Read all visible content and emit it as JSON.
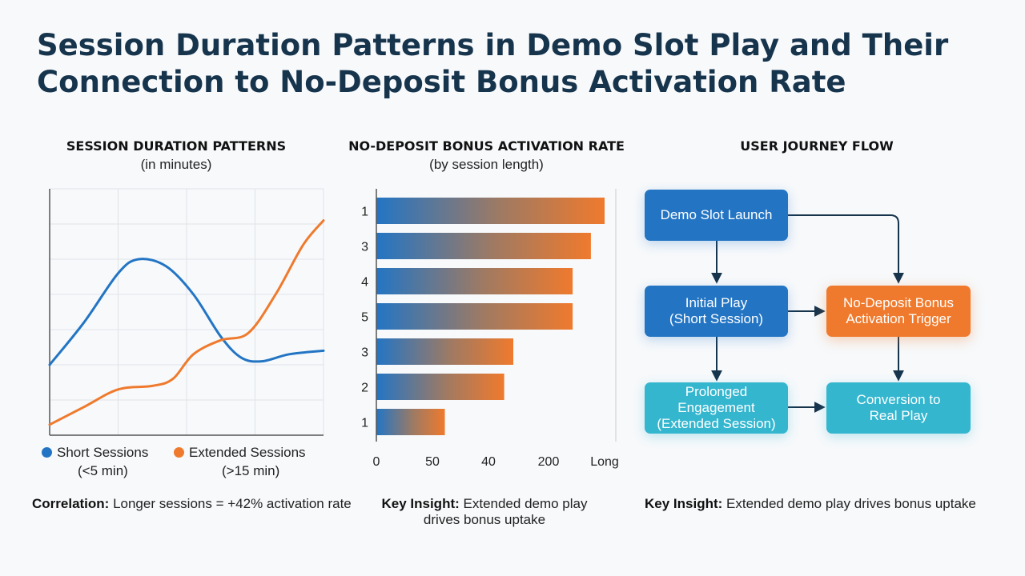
{
  "title": "Session Duration Patterns in Demo Slot Play and Their Connection to No-Deposit Bonus Activation Rate",
  "colors": {
    "blue": "#2375c4",
    "orange": "#ef7a2d",
    "teal": "#34b6cf",
    "title": "#17344d"
  },
  "chart_data": [
    {
      "type": "line",
      "title": "SESSION DURATION PATTERNS",
      "subtitle": "(in minutes)",
      "xlim": [
        0,
        4
      ],
      "ylim": [
        0,
        7
      ],
      "grid": true,
      "legend_position": "bottom",
      "series": [
        {
          "name": "Short Sessions",
          "legend_sub": "(<5 min)",
          "color": "#2375c4",
          "x": [
            0,
            0.5,
            1,
            1.3,
            1.7,
            2.1,
            2.5,
            2.8,
            3.1,
            3.5,
            4
          ],
          "y": [
            2.0,
            3.2,
            4.6,
            5.0,
            4.8,
            4.0,
            2.8,
            2.2,
            2.1,
            2.3,
            2.4
          ]
        },
        {
          "name": "Extended Sessions",
          "legend_sub": "(>15 min)",
          "color": "#ef7a2d",
          "x": [
            0,
            0.5,
            1,
            1.5,
            1.8,
            2.1,
            2.5,
            2.9,
            3.3,
            3.7,
            4
          ],
          "y": [
            0.3,
            0.8,
            1.3,
            1.4,
            1.6,
            2.3,
            2.7,
            2.9,
            4.0,
            5.4,
            6.1
          ]
        }
      ]
    },
    {
      "type": "bar",
      "orientation": "horizontal",
      "title": "NO-DEPOSIT BONUS ACTIVATION RATE",
      "subtitle": "(by session length)",
      "categories": [
        "1",
        "3",
        "4",
        "5",
        "3",
        "2",
        "1"
      ],
      "values": [
        100,
        94,
        86,
        86,
        60,
        56,
        30
      ],
      "xlim": [
        0,
        100
      ],
      "x_tick_labels": [
        "0",
        "50",
        "40",
        "200",
        "Long"
      ],
      "gradient": [
        "#2375c4",
        "#ef7a2d"
      ]
    }
  ],
  "left_note": {
    "bold": "Correlation:",
    "text": " Longer sessions = +42% activation rate"
  },
  "middle_note": {
    "bold": "Key Insight:",
    "line1": " Extended demo play",
    "line2": "drives bonus uptake"
  },
  "flow": {
    "title": "USER JOURNEY FLOW",
    "boxes": {
      "launch": "Demo Slot Launch",
      "initial": "Initial Play\n(Short Session)",
      "bonus": "No-Deposit Bonus\nActivation Trigger",
      "prolonged": "Prolonged\nEngagement\n(Extended Session)",
      "conversion": "Conversion to\nReal Play"
    },
    "note": {
      "bold": "Key Insight:",
      "text": " Extended demo play drives bonus uptake"
    }
  }
}
